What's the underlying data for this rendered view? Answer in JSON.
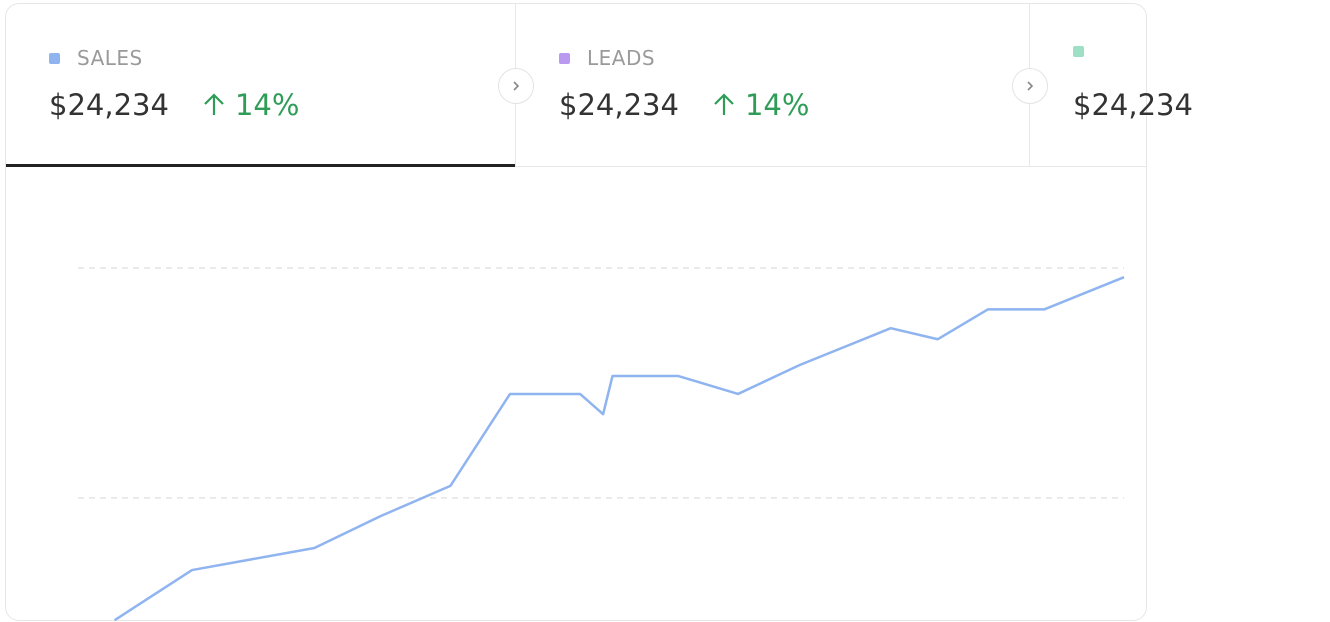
{
  "tabs": [
    {
      "label": "SALES",
      "value": "$24,234",
      "change": "14%",
      "color": "#8fb4f0",
      "active": true
    },
    {
      "label": "LEADS",
      "value": "$24,234",
      "change": "14%",
      "color": "#b99af0",
      "active": false
    },
    {
      "value": "$24,234",
      "color": "#9ee0c5",
      "active": false
    }
  ],
  "chart_data": {
    "type": "line",
    "x": [
      3.5,
      10.9,
      22.6,
      28.9,
      35.6,
      41.3,
      48.0,
      50.2,
      51.1,
      57.4,
      63.1,
      69.0,
      77.7,
      82.2,
      87.0,
      92.4,
      100
    ],
    "series": [
      {
        "name": "SALES",
        "color": "#8fb4f0",
        "values": [
          23.4,
          34.3,
          39.1,
          46.0,
          52.6,
          72.6,
          72.6,
          68.2,
          76.5,
          76.5,
          72.6,
          78.9,
          86.9,
          84.5,
          91.0,
          91.0,
          98.0
        ]
      }
    ],
    "xlim": [
      0,
      100
    ],
    "ylim": [
      23,
      120
    ],
    "yticks": [
      50,
      100
    ],
    "grid": true
  }
}
